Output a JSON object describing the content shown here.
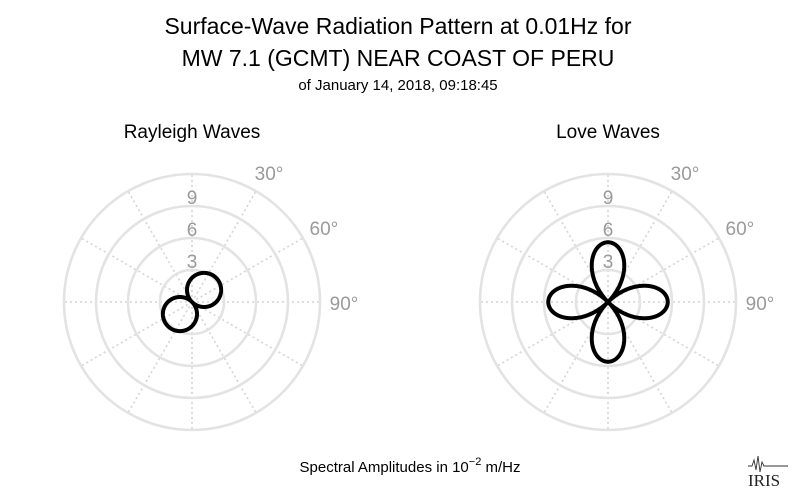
{
  "header": {
    "title_line1": "Surface-Wave Radiation Pattern at 0.01Hz for",
    "title_line2": "MW 7.1 (GCMT) NEAR COAST OF PERU",
    "subtitle": "of January 14, 2018, 09:18:45"
  },
  "footer": {
    "units_prefix": "Spectral Amplitudes in 10",
    "units_exponent": "−2",
    "units_suffix": " m/Hz",
    "logo": "IRIS"
  },
  "chart_data": [
    {
      "type": "polar-line",
      "title": "Rayleigh Waves",
      "r_ticks": [
        3,
        6,
        9
      ],
      "r_tick_labels": [
        "3",
        "6",
        "9"
      ],
      "r_max": 12,
      "theta_ticks": [
        30,
        60,
        90
      ],
      "theta_tick_labels": [
        "30°",
        "60°",
        "90°"
      ],
      "theta_zero": "north",
      "theta_direction": "clockwise",
      "grid": true,
      "series_color": "#000000",
      "pattern": {
        "kind": "sin",
        "amplitude": 3.2,
        "offset_deg": 45
      },
      "series": [
        {
          "theta": [
            0,
            15,
            30,
            45,
            60,
            75,
            90,
            105,
            120,
            135,
            150,
            165,
            180,
            195,
            210,
            225,
            240,
            255,
            270,
            285,
            300,
            315,
            330,
            345
          ],
          "r": [
            2.3,
            2.8,
            3.1,
            3.2,
            3.1,
            2.8,
            2.3,
            1.6,
            0.8,
            0.0,
            0.8,
            1.6,
            2.3,
            2.8,
            3.1,
            3.2,
            3.1,
            2.8,
            2.3,
            1.6,
            0.8,
            0.0,
            0.8,
            1.6
          ]
        }
      ]
    },
    {
      "type": "polar-line",
      "title": "Love Waves",
      "r_ticks": [
        3,
        6,
        9
      ],
      "r_tick_labels": [
        "3",
        "6",
        "9"
      ],
      "r_max": 12,
      "theta_ticks": [
        30,
        60,
        90
      ],
      "theta_tick_labels": [
        "30°",
        "60°",
        "90°"
      ],
      "theta_zero": "north",
      "theta_direction": "clockwise",
      "grid": true,
      "series_color": "#000000",
      "pattern": {
        "kind": "cos2",
        "amplitude": 5.6,
        "offset_deg": 0
      },
      "series": [
        {
          "theta": [
            0,
            15,
            30,
            45,
            60,
            75,
            90,
            105,
            120,
            135,
            150,
            165,
            180,
            195,
            210,
            225,
            240,
            255,
            270,
            285,
            300,
            315,
            330,
            345
          ],
          "r": [
            5.6,
            4.8,
            2.8,
            0.0,
            2.8,
            4.8,
            5.6,
            4.8,
            2.8,
            0.0,
            2.8,
            4.8,
            5.6,
            4.8,
            2.8,
            0.0,
            2.8,
            4.8,
            5.6,
            4.8,
            2.8,
            0.0,
            2.8,
            4.8
          ]
        }
      ]
    }
  ]
}
